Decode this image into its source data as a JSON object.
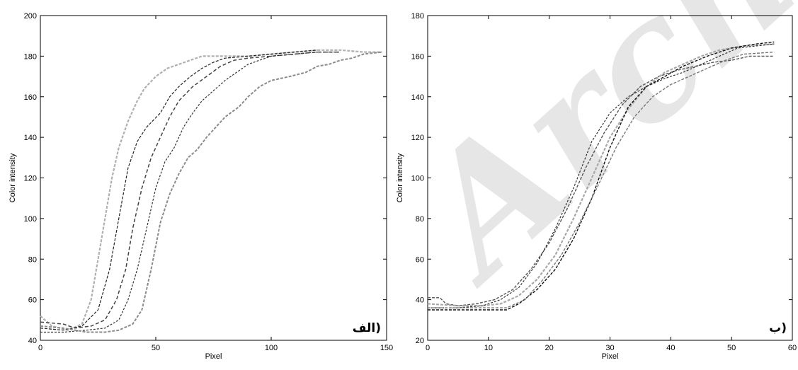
{
  "watermark": "Archive of SID",
  "chart_data": [
    {
      "type": "line",
      "panel_label": "الف)",
      "xlabel": "Pixel",
      "ylabel": "Color intensity",
      "xlim": [
        0,
        150
      ],
      "ylim": [
        40,
        200
      ],
      "xticks": [
        0,
        50,
        100,
        150
      ],
      "yticks": [
        40,
        60,
        80,
        100,
        120,
        140,
        160,
        180,
        200
      ],
      "grid": false,
      "series": [
        {
          "color": "#b0b0b0",
          "dash": "4,2",
          "width": 2.2,
          "points": [
            [
              0,
              52
            ],
            [
              5,
              47
            ],
            [
              12,
              45
            ],
            [
              18,
              48
            ],
            [
              22,
              60
            ],
            [
              25,
              80
            ],
            [
              28,
              100
            ],
            [
              31,
              120
            ],
            [
              34,
              135
            ],
            [
              38,
              148
            ],
            [
              42,
              158
            ],
            [
              45,
              164
            ],
            [
              50,
              170
            ],
            [
              55,
              174
            ],
            [
              60,
              176
            ],
            [
              65,
              178
            ],
            [
              70,
              180
            ],
            [
              80,
              180
            ],
            [
              90,
              180
            ],
            [
              100,
              181
            ],
            [
              110,
              182
            ],
            [
              120,
              183
            ],
            [
              130,
              183
            ],
            [
              140,
              182
            ],
            [
              148,
              182
            ]
          ]
        },
        {
          "color": "#222222",
          "dash": "4,2",
          "width": 1.2,
          "points": [
            [
              0,
              46
            ],
            [
              10,
              45
            ],
            [
              18,
              47
            ],
            [
              25,
              55
            ],
            [
              30,
              75
            ],
            [
              34,
              100
            ],
            [
              38,
              125
            ],
            [
              42,
              138
            ],
            [
              46,
              145
            ],
            [
              52,
              152
            ],
            [
              56,
              160
            ],
            [
              60,
              165
            ],
            [
              65,
              170
            ],
            [
              70,
              174
            ],
            [
              75,
              177
            ],
            [
              80,
              179
            ],
            [
              90,
              180
            ],
            [
              100,
              181
            ],
            [
              110,
              182
            ],
            [
              120,
              183
            ]
          ]
        },
        {
          "color": "#444444",
          "dash": "5,3",
          "width": 1.5,
          "points": [
            [
              0,
              49
            ],
            [
              10,
              48
            ],
            [
              15,
              46
            ],
            [
              22,
              47
            ],
            [
              28,
              50
            ],
            [
              33,
              60
            ],
            [
              37,
              75
            ],
            [
              40,
              95
            ],
            [
              44,
              115
            ],
            [
              48,
              130
            ],
            [
              52,
              140
            ],
            [
              56,
              150
            ],
            [
              60,
              158
            ],
            [
              66,
              165
            ],
            [
              72,
              170
            ],
            [
              78,
              175
            ],
            [
              84,
              178
            ],
            [
              90,
              179
            ],
            [
              100,
              180
            ],
            [
              110,
              181
            ],
            [
              120,
              182
            ],
            [
              130,
              182
            ]
          ]
        },
        {
          "color": "#333333",
          "dash": "3,2",
          "width": 1.2,
          "points": [
            [
              0,
              44
            ],
            [
              10,
              44
            ],
            [
              20,
              45
            ],
            [
              28,
              46
            ],
            [
              34,
              50
            ],
            [
              38,
              60
            ],
            [
              42,
              75
            ],
            [
              46,
              95
            ],
            [
              50,
              115
            ],
            [
              54,
              128
            ],
            [
              58,
              135
            ],
            [
              62,
              145
            ],
            [
              66,
              152
            ],
            [
              70,
              158
            ],
            [
              75,
              163
            ],
            [
              80,
              168
            ],
            [
              85,
              172
            ],
            [
              90,
              176
            ],
            [
              95,
              178
            ],
            [
              100,
              180
            ],
            [
              110,
              181
            ],
            [
              120,
              182
            ],
            [
              130,
              182
            ]
          ]
        },
        {
          "color": "#8c8c8c",
          "dash": "4,2",
          "width": 2.0,
          "points": [
            [
              0,
              47
            ],
            [
              10,
              46
            ],
            [
              20,
              44
            ],
            [
              28,
              44
            ],
            [
              34,
              45
            ],
            [
              40,
              48
            ],
            [
              44,
              55
            ],
            [
              48,
              75
            ],
            [
              52,
              98
            ],
            [
              56,
              112
            ],
            [
              60,
              122
            ],
            [
              64,
              130
            ],
            [
              68,
              134
            ],
            [
              72,
              140
            ],
            [
              76,
              145
            ],
            [
              80,
              150
            ],
            [
              86,
              155
            ],
            [
              90,
              160
            ],
            [
              95,
              165
            ],
            [
              100,
              168
            ],
            [
              108,
              170
            ],
            [
              115,
              172
            ],
            [
              120,
              175
            ],
            [
              125,
              176
            ],
            [
              130,
              178
            ],
            [
              135,
              179
            ],
            [
              140,
              181
            ],
            [
              148,
              182
            ]
          ]
        }
      ]
    },
    {
      "type": "line",
      "panel_label": "ب)",
      "xlabel": "Pixel",
      "ylabel": "Color intensity",
      "xlim": [
        0,
        60
      ],
      "ylim": [
        20,
        180
      ],
      "xticks": [
        0,
        10,
        20,
        30,
        40,
        50,
        60
      ],
      "yticks": [
        20,
        40,
        60,
        80,
        100,
        120,
        140,
        160,
        180
      ],
      "grid": false,
      "series": [
        {
          "color": "#555555",
          "dash": "4,2",
          "width": 1.4,
          "points": [
            [
              0,
              41
            ],
            [
              2,
              41
            ],
            [
              3,
              38
            ],
            [
              5,
              37
            ],
            [
              8,
              38
            ],
            [
              11,
              40
            ],
            [
              14,
              45
            ],
            [
              17,
              55
            ],
            [
              20,
              68
            ],
            [
              23,
              85
            ],
            [
              26,
              105
            ],
            [
              29,
              122
            ],
            [
              32,
              136
            ],
            [
              35,
              145
            ],
            [
              38,
              150
            ],
            [
              41,
              153
            ],
            [
              44,
              155
            ],
            [
              47,
              157
            ],
            [
              50,
              158
            ],
            [
              53,
              160
            ],
            [
              57,
              160
            ]
          ]
        },
        {
          "color": "#a8a8a8",
          "dash": "4,2",
          "width": 2.2,
          "points": [
            [
              0,
              38
            ],
            [
              5,
              37
            ],
            [
              9,
              37
            ],
            [
              12,
              38
            ],
            [
              15,
              42
            ],
            [
              18,
              50
            ],
            [
              21,
              62
            ],
            [
              24,
              80
            ],
            [
              27,
              100
            ],
            [
              30,
              120
            ],
            [
              33,
              134
            ],
            [
              36,
              145
            ],
            [
              39,
              152
            ],
            [
              42,
              156
            ],
            [
              45,
              160
            ],
            [
              48,
              163
            ],
            [
              52,
              165
            ],
            [
              57,
              166
            ]
          ]
        },
        {
          "color": "#111111",
          "dash": "4,2",
          "width": 1.4,
          "points": [
            [
              0,
              35
            ],
            [
              5,
              35
            ],
            [
              10,
              35
            ],
            [
              13,
              35
            ],
            [
              15,
              38
            ],
            [
              18,
              45
            ],
            [
              21,
              55
            ],
            [
              24,
              70
            ],
            [
              27,
              90
            ],
            [
              30,
              115
            ],
            [
              33,
              135
            ],
            [
              36,
              145
            ],
            [
              39,
              150
            ],
            [
              42,
              155
            ],
            [
              46,
              160
            ],
            [
              50,
              164
            ],
            [
              54,
              166
            ],
            [
              57,
              167
            ]
          ]
        },
        {
          "color": "#333333",
          "dash": "3,2",
          "width": 1.2,
          "points": [
            [
              0,
              36
            ],
            [
              5,
              36
            ],
            [
              9,
              37
            ],
            [
              12,
              40
            ],
            [
              15,
              46
            ],
            [
              18,
              58
            ],
            [
              21,
              75
            ],
            [
              24,
              95
            ],
            [
              27,
              118
            ],
            [
              30,
              132
            ],
            [
              33,
              140
            ],
            [
              36,
              145
            ],
            [
              39,
              149
            ],
            [
              42,
              152
            ],
            [
              45,
              156
            ],
            [
              48,
              160
            ],
            [
              51,
              164
            ],
            [
              54,
              165
            ],
            [
              57,
              166
            ]
          ]
        },
        {
          "color": "#777777",
          "dash": "4,2",
          "width": 1.4,
          "points": [
            [
              0,
              36
            ],
            [
              5,
              36
            ],
            [
              10,
              36
            ],
            [
              13,
              36
            ],
            [
              16,
              40
            ],
            [
              19,
              50
            ],
            [
              22,
              62
            ],
            [
              25,
              78
            ],
            [
              28,
              96
            ],
            [
              31,
              115
            ],
            [
              34,
              130
            ],
            [
              37,
              140
            ],
            [
              40,
              146
            ],
            [
              43,
              150
            ],
            [
              46,
              154
            ],
            [
              49,
              158
            ],
            [
              52,
              161
            ],
            [
              57,
              162
            ]
          ]
        }
      ]
    }
  ]
}
